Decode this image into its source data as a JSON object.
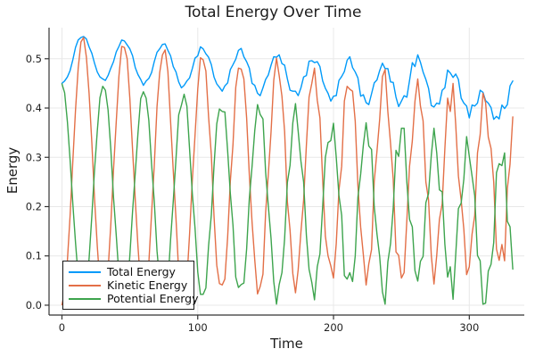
{
  "chart_data": {
    "type": "line",
    "title": "Total Energy Over Time",
    "xlabel": "Time",
    "ylabel": "Energy",
    "xlim": [
      -9.5,
      340.5
    ],
    "ylim": [
      -0.02,
      0.563
    ],
    "xticks": [
      0,
      100,
      200,
      300
    ],
    "yticks": [
      "0.0",
      "0.1",
      "0.2",
      "0.3",
      "0.4",
      "0.5"
    ],
    "grid": true,
    "legend_position": "bottom-left",
    "background": "#ffffff",
    "grid_color": "#e8e8e8",
    "spine_color": "#333333",
    "x": [
      0,
      2,
      4,
      6,
      8,
      10,
      12,
      14,
      16,
      18,
      20,
      22,
      24,
      26,
      28,
      30,
      32,
      34,
      36,
      38,
      40,
      42,
      44,
      46,
      48,
      50,
      52,
      54,
      56,
      58,
      60,
      62,
      64,
      66,
      68,
      70,
      72,
      74,
      76,
      78,
      80,
      82,
      84,
      86,
      88,
      90,
      92,
      94,
      96,
      98,
      100,
      102,
      104,
      106,
      108,
      110,
      112,
      114,
      116,
      118,
      120,
      122,
      124,
      126,
      128,
      130,
      132,
      134,
      136,
      138,
      140,
      142,
      144,
      146,
      148,
      150,
      152,
      154,
      156,
      158,
      160,
      162,
      164,
      166,
      168,
      170,
      172,
      174,
      176,
      178,
      180,
      182,
      184,
      186,
      188,
      190,
      192,
      194,
      196,
      198,
      200,
      202,
      204,
      206,
      208,
      210,
      212,
      214,
      216,
      218,
      220,
      222,
      224,
      226,
      228,
      230,
      232,
      234,
      236,
      238,
      240,
      242,
      244,
      246,
      248,
      250,
      252,
      254,
      256,
      258,
      260,
      262,
      264,
      266,
      268,
      270,
      272,
      274,
      276,
      278,
      280,
      282,
      284,
      286,
      288,
      290,
      292,
      294,
      296,
      298,
      300,
      302,
      304,
      306,
      308,
      310,
      312,
      314,
      316,
      318,
      320,
      322,
      324,
      326,
      328,
      330,
      332
    ],
    "series": [
      {
        "name": "Total Energy",
        "color": "#009af9",
        "values": [
          0.45,
          0.455,
          0.463,
          0.476,
          0.498,
          0.523,
          0.538,
          0.543,
          0.545,
          0.54,
          0.524,
          0.511,
          0.491,
          0.473,
          0.463,
          0.459,
          0.456,
          0.466,
          0.481,
          0.494,
          0.514,
          0.525,
          0.538,
          0.536,
          0.528,
          0.52,
          0.506,
          0.482,
          0.468,
          0.458,
          0.446,
          0.455,
          0.46,
          0.472,
          0.494,
          0.513,
          0.52,
          0.529,
          0.53,
          0.517,
          0.506,
          0.484,
          0.473,
          0.453,
          0.441,
          0.446,
          0.455,
          0.461,
          0.48,
          0.501,
          0.506,
          0.524,
          0.52,
          0.51,
          0.503,
          0.488,
          0.463,
          0.449,
          0.442,
          0.434,
          0.445,
          0.451,
          0.478,
          0.488,
          0.499,
          0.517,
          0.521,
          0.504,
          0.494,
          0.481,
          0.45,
          0.446,
          0.43,
          0.425,
          0.441,
          0.458,
          0.467,
          0.487,
          0.504,
          0.503,
          0.508,
          0.49,
          0.487,
          0.459,
          0.436,
          0.434,
          0.434,
          0.425,
          0.441,
          0.463,
          0.466,
          0.495,
          0.496,
          0.492,
          0.494,
          0.484,
          0.455,
          0.44,
          0.43,
          0.414,
          0.424,
          0.425,
          0.456,
          0.464,
          0.474,
          0.497,
          0.504,
          0.482,
          0.473,
          0.461,
          0.424,
          0.427,
          0.411,
          0.407,
          0.429,
          0.451,
          0.457,
          0.476,
          0.491,
          0.48,
          0.48,
          0.453,
          0.452,
          0.422,
          0.403,
          0.414,
          0.425,
          0.422,
          0.456,
          0.492,
          0.484,
          0.508,
          0.493,
          0.473,
          0.458,
          0.44,
          0.405,
          0.402,
          0.41,
          0.408,
          0.436,
          0.441,
          0.477,
          0.471,
          0.462,
          0.469,
          0.458,
          0.42,
          0.41,
          0.404,
          0.38,
          0.406,
          0.404,
          0.41,
          0.436,
          0.432,
          0.415,
          0.41,
          0.401,
          0.377,
          0.383,
          0.378,
          0.406,
          0.399,
          0.407,
          0.445,
          0.455
        ]
      },
      {
        "name": "Kinetic Energy",
        "color": "#e36f47",
        "values": [
          0.001,
          0.024,
          0.091,
          0.181,
          0.293,
          0.396,
          0.481,
          0.534,
          0.543,
          0.503,
          0.43,
          0.33,
          0.217,
          0.12,
          0.042,
          0.015,
          0.02,
          0.07,
          0.165,
          0.275,
          0.373,
          0.465,
          0.525,
          0.523,
          0.5,
          0.42,
          0.315,
          0.214,
          0.12,
          0.039,
          0.013,
          0.035,
          0.085,
          0.186,
          0.283,
          0.403,
          0.472,
          0.508,
          0.518,
          0.474,
          0.373,
          0.273,
          0.175,
          0.067,
          0.035,
          0.018,
          0.051,
          0.144,
          0.254,
          0.344,
          0.439,
          0.502,
          0.498,
          0.475,
          0.383,
          0.305,
          0.181,
          0.081,
          0.044,
          0.041,
          0.053,
          0.138,
          0.251,
          0.326,
          0.442,
          0.481,
          0.479,
          0.459,
          0.38,
          0.265,
          0.168,
          0.092,
          0.023,
          0.038,
          0.063,
          0.188,
          0.265,
          0.352,
          0.456,
          0.501,
          0.466,
          0.424,
          0.352,
          0.21,
          0.152,
          0.064,
          0.025,
          0.072,
          0.149,
          0.213,
          0.324,
          0.422,
          0.45,
          0.481,
          0.416,
          0.38,
          0.254,
          0.14,
          0.1,
          0.08,
          0.055,
          0.125,
          0.233,
          0.282,
          0.414,
          0.444,
          0.438,
          0.434,
          0.373,
          0.242,
          0.158,
          0.102,
          0.041,
          0.084,
          0.113,
          0.251,
          0.313,
          0.377,
          0.464,
          0.478,
          0.392,
          0.328,
          0.255,
          0.108,
          0.101,
          0.055,
          0.066,
          0.173,
          0.282,
          0.333,
          0.414,
          0.459,
          0.404,
          0.374,
          0.25,
          0.214,
          0.101,
          0.043,
          0.101,
          0.174,
          0.206,
          0.317,
          0.42,
          0.393,
          0.45,
          0.366,
          0.262,
          0.213,
          0.154,
          0.062,
          0.078,
          0.144,
          0.182,
          0.309,
          0.346,
          0.43,
          0.411,
          0.341,
          0.318,
          0.25,
          0.114,
          0.091,
          0.123,
          0.09,
          0.237,
          0.286,
          0.382
        ]
      },
      {
        "name": "Potential Energy",
        "color": "#3da44d",
        "values": [
          0.449,
          0.431,
          0.372,
          0.295,
          0.205,
          0.127,
          0.057,
          0.009,
          0.002,
          0.037,
          0.094,
          0.181,
          0.274,
          0.353,
          0.421,
          0.444,
          0.436,
          0.396,
          0.316,
          0.219,
          0.141,
          0.06,
          0.013,
          0.013,
          0.028,
          0.1,
          0.191,
          0.268,
          0.348,
          0.419,
          0.433,
          0.42,
          0.375,
          0.286,
          0.211,
          0.11,
          0.048,
          0.021,
          0.012,
          0.043,
          0.133,
          0.211,
          0.298,
          0.386,
          0.406,
          0.428,
          0.404,
          0.317,
          0.226,
          0.157,
          0.067,
          0.022,
          0.022,
          0.035,
          0.12,
          0.183,
          0.282,
          0.368,
          0.398,
          0.393,
          0.392,
          0.313,
          0.227,
          0.162,
          0.057,
          0.036,
          0.042,
          0.045,
          0.114,
          0.216,
          0.282,
          0.354,
          0.407,
          0.387,
          0.378,
          0.27,
          0.202,
          0.135,
          0.048,
          0.002,
          0.042,
          0.066,
          0.135,
          0.249,
          0.284,
          0.37,
          0.409,
          0.353,
          0.292,
          0.25,
          0.142,
          0.073,
          0.046,
          0.011,
          0.078,
          0.104,
          0.201,
          0.3,
          0.33,
          0.334,
          0.369,
          0.3,
          0.223,
          0.182,
          0.06,
          0.053,
          0.066,
          0.048,
          0.1,
          0.219,
          0.266,
          0.325,
          0.37,
          0.323,
          0.316,
          0.2,
          0.144,
          0.099,
          0.027,
          0.002,
          0.088,
          0.125,
          0.197,
          0.314,
          0.302,
          0.359,
          0.359,
          0.249,
          0.174,
          0.159,
          0.07,
          0.049,
          0.089,
          0.099,
          0.208,
          0.226,
          0.304,
          0.359,
          0.309,
          0.234,
          0.23,
          0.124,
          0.057,
          0.078,
          0.012,
          0.103,
          0.196,
          0.207,
          0.256,
          0.342,
          0.302,
          0.262,
          0.222,
          0.101,
          0.09,
          0.002,
          0.004,
          0.069,
          0.083,
          0.127,
          0.269,
          0.287,
          0.283,
          0.309,
          0.17,
          0.159,
          0.073
        ]
      }
    ]
  }
}
